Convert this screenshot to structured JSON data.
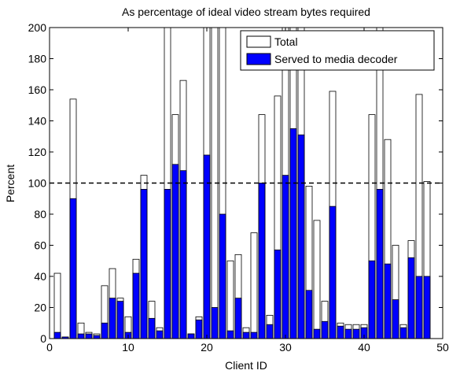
{
  "chart_data": {
    "type": "bar",
    "title": "As percentage of ideal video stream bytes required",
    "xlabel": "Client ID",
    "ylabel": "Percent",
    "xlim": [
      0,
      50
    ],
    "ylim": [
      0,
      200
    ],
    "xticks": [
      "0",
      "10",
      "20",
      "30",
      "40",
      "50"
    ],
    "yticks": [
      "0",
      "20",
      "40",
      "60",
      "80",
      "100",
      "120",
      "140",
      "160",
      "180",
      "200"
    ],
    "grid": false,
    "legend_position": "top-right",
    "reference_line": {
      "y": 100,
      "style": "dashed",
      "color": "#000000"
    },
    "x": [
      1,
      2,
      3,
      4,
      5,
      6,
      7,
      8,
      9,
      10,
      11,
      12,
      13,
      14,
      15,
      16,
      17,
      18,
      19,
      20,
      21,
      22,
      23,
      24,
      25,
      26,
      27,
      28,
      29,
      30,
      31,
      32,
      33,
      34,
      35,
      36,
      37,
      38,
      39,
      40,
      41,
      42,
      43,
      44,
      45,
      46,
      47,
      48
    ],
    "series": [
      {
        "name": "Total",
        "color": "#ffffff",
        "values": [
          42,
          1,
          154,
          10,
          4,
          3,
          34,
          45,
          26,
          14,
          51,
          105,
          24,
          7,
          200,
          144,
          166,
          3,
          14,
          200,
          200,
          200,
          50,
          54,
          7,
          68,
          144,
          15,
          156,
          200,
          200,
          200,
          98,
          76,
          24,
          159,
          10,
          9,
          9,
          9,
          144,
          200,
          128,
          60,
          9,
          63,
          157,
          101
        ]
      },
      {
        "name": "Served to media decoder",
        "color": "#0000ff",
        "values": [
          4,
          1,
          90,
          3,
          3,
          2,
          10,
          26,
          24,
          4,
          42,
          96,
          13,
          5,
          96,
          112,
          108,
          3,
          12,
          118,
          20,
          80,
          5,
          26,
          4,
          4,
          100,
          9,
          57,
          105,
          135,
          131,
          31,
          6,
          11,
          85,
          8,
          6,
          6,
          7,
          50,
          96,
          48,
          25,
          7,
          52,
          40,
          40
        ]
      }
    ]
  }
}
